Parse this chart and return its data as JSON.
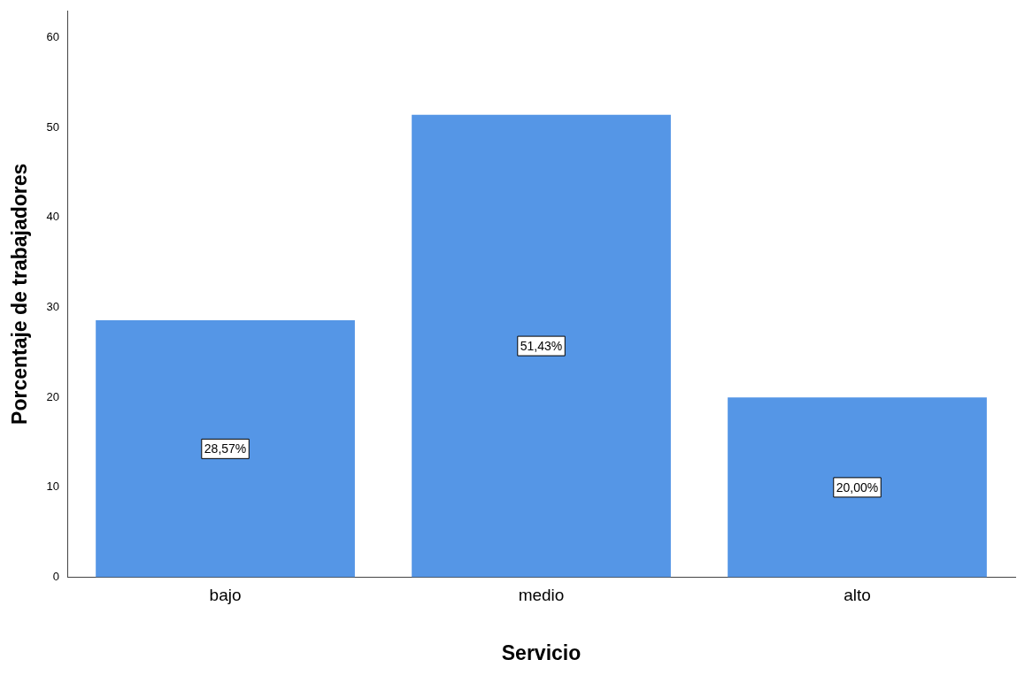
{
  "chart_data": {
    "type": "bar",
    "xlabel": "Servicio",
    "ylabel": "Porcentaje de trabajadores",
    "categories": [
      "bajo",
      "medio",
      "alto"
    ],
    "values": [
      28.57,
      51.43,
      20.0
    ],
    "value_labels": [
      "28,57%",
      "51,43%",
      "20,00%"
    ],
    "color": "#5596e6",
    "ylim": [
      0,
      63
    ],
    "yticks": [
      0,
      10,
      20,
      30,
      40,
      50,
      60
    ],
    "grid": false,
    "legend": false
  }
}
